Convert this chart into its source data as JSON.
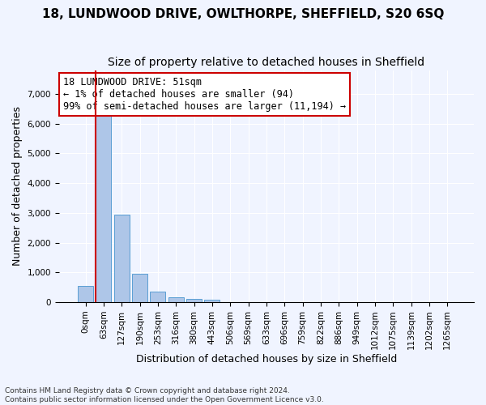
{
  "title": "18, LUNDWOOD DRIVE, OWLTHORPE, SHEFFIELD, S20 6SQ",
  "subtitle": "Size of property relative to detached houses in Sheffield",
  "xlabel": "Distribution of detached houses by size in Sheffield",
  "ylabel": "Number of detached properties",
  "footer_line1": "Contains HM Land Registry data © Crown copyright and database right 2024.",
  "footer_line2": "Contains public sector information licensed under the Open Government Licence v3.0.",
  "bar_labels": [
    "0sqm",
    "63sqm",
    "127sqm",
    "190sqm",
    "253sqm",
    "316sqm",
    "380sqm",
    "443sqm",
    "506sqm",
    "569sqm",
    "633sqm",
    "696sqm",
    "759sqm",
    "822sqm",
    "886sqm",
    "949sqm",
    "1012sqm",
    "1075sqm",
    "1139sqm",
    "1202sqm",
    "1265sqm"
  ],
  "bar_values": [
    550,
    6380,
    2930,
    960,
    340,
    165,
    110,
    75,
    0,
    0,
    0,
    0,
    0,
    0,
    0,
    0,
    0,
    0,
    0,
    0,
    0
  ],
  "bar_color": "#aec6e8",
  "bar_edge_color": "#5a9fd4",
  "annotation_box_text": "18 LUNDWOOD DRIVE: 51sqm\n← 1% of detached houses are smaller (94)\n99% of semi-detached houses are larger (11,194) →",
  "annotation_box_color": "#ffffff",
  "annotation_box_edge_color": "#cc0000",
  "vline_x": 1,
  "vline_color": "#cc0000",
  "ylim": [
    0,
    7800
  ],
  "background_color": "#f0f4ff",
  "grid_color": "#ffffff",
  "title_fontsize": 11,
  "subtitle_fontsize": 10,
  "xlabel_fontsize": 9,
  "ylabel_fontsize": 9,
  "tick_fontsize": 7.5,
  "annotation_fontsize": 8.5
}
